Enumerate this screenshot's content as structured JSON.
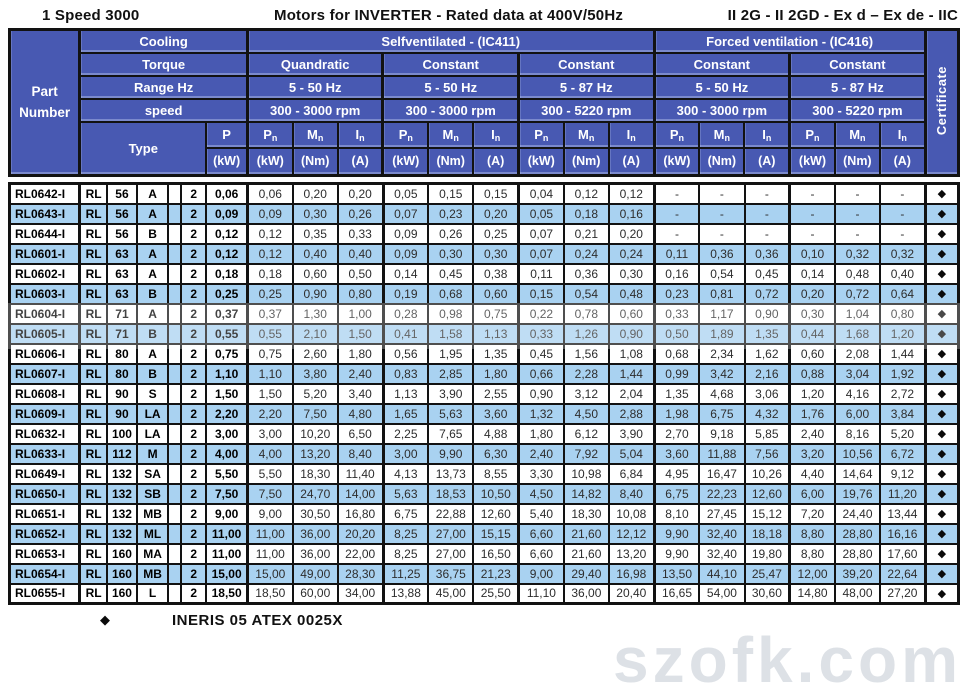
{
  "title": {
    "left": "1 Speed 3000",
    "center": "Motors for INVERTER - Rated data at 400V/50Hz",
    "right": "II 2G - II 2GD - Ex d – Ex de - IIC"
  },
  "colors": {
    "header_blue": "#4859b2",
    "row_alt_blue": "#a9d2f1",
    "border": "#121212"
  },
  "header": {
    "part_number": "Part Number",
    "cooling_label": "Cooling",
    "torque_label": "Torque",
    "range_label": "Range Hz",
    "speed_label": "speed",
    "type_label": "Type",
    "certificate_label": "Certificate",
    "selfventilated": "Selfventilated - (IC411)",
    "forced": "Forced ventilation - (IC416)",
    "p_col": {
      "sym": "P",
      "unit": "(kW)"
    },
    "groups": [
      {
        "torque": "Quandratic",
        "range": "5 - 50 Hz",
        "speed": "300 - 3000 rpm"
      },
      {
        "torque": "Constant",
        "range": "5 - 50 Hz",
        "speed": "300 - 3000 rpm"
      },
      {
        "torque": "Constant",
        "range": "5 - 87 Hz",
        "speed": "300 - 5220 rpm"
      },
      {
        "torque": "Constant",
        "range": "5 - 50 Hz",
        "speed": "300 - 3000 rpm"
      },
      {
        "torque": "Constant",
        "range": "5 - 87 Hz",
        "speed": "300 - 5220 rpm"
      }
    ],
    "sub_cols": [
      {
        "sym": "P",
        "sub": "n",
        "unit": "(kW)"
      },
      {
        "sym": "M",
        "sub": "n",
        "unit": "(Nm)"
      },
      {
        "sym": "I",
        "sub": "n",
        "unit": "(A)"
      }
    ]
  },
  "rows": [
    {
      "part": "RL0642-I",
      "type": [
        "RL",
        "56",
        "A",
        "2"
      ],
      "p": "0,06",
      "values": [
        "0,06",
        "0,20",
        "0,20",
        "0,05",
        "0,15",
        "0,15",
        "0,04",
        "0,12",
        "0,12",
        "-",
        "-",
        "-",
        "-",
        "-",
        "-"
      ],
      "cert": "◆"
    },
    {
      "part": "RL0643-I",
      "type": [
        "RL",
        "56",
        "A",
        "2"
      ],
      "p": "0,09",
      "values": [
        "0,09",
        "0,30",
        "0,26",
        "0,07",
        "0,23",
        "0,20",
        "0,05",
        "0,18",
        "0,16",
        "-",
        "-",
        "-",
        "-",
        "-",
        "-"
      ],
      "cert": "◆"
    },
    {
      "part": "RL0644-I",
      "type": [
        "RL",
        "56",
        "B",
        "2"
      ],
      "p": "0,12",
      "values": [
        "0,12",
        "0,35",
        "0,33",
        "0,09",
        "0,26",
        "0,25",
        "0,07",
        "0,21",
        "0,20",
        "-",
        "-",
        "-",
        "-",
        "-",
        "-"
      ],
      "cert": "◆"
    },
    {
      "part": "RL0601-I",
      "type": [
        "RL",
        "63",
        "A",
        "2"
      ],
      "p": "0,12",
      "values": [
        "0,12",
        "0,40",
        "0,40",
        "0,09",
        "0,30",
        "0,30",
        "0,07",
        "0,24",
        "0,24",
        "0,11",
        "0,36",
        "0,36",
        "0,10",
        "0,32",
        "0,32"
      ],
      "cert": "◆"
    },
    {
      "part": "RL0602-I",
      "type": [
        "RL",
        "63",
        "A",
        "2"
      ],
      "p": "0,18",
      "values": [
        "0,18",
        "0,60",
        "0,50",
        "0,14",
        "0,45",
        "0,38",
        "0,11",
        "0,36",
        "0,30",
        "0,16",
        "0,54",
        "0,45",
        "0,14",
        "0,48",
        "0,40"
      ],
      "cert": "◆"
    },
    {
      "part": "RL0603-I",
      "type": [
        "RL",
        "63",
        "B",
        "2"
      ],
      "p": "0,25",
      "values": [
        "0,25",
        "0,90",
        "0,80",
        "0,19",
        "0,68",
        "0,60",
        "0,15",
        "0,54",
        "0,48",
        "0,23",
        "0,81",
        "0,72",
        "0,20",
        "0,72",
        "0,64"
      ],
      "cert": "◆"
    },
    {
      "part": "RL0604-I",
      "type": [
        "RL",
        "71",
        "A",
        "2"
      ],
      "p": "0,37",
      "values": [
        "0,37",
        "1,30",
        "1,00",
        "0,28",
        "0,98",
        "0,75",
        "0,22",
        "0,78",
        "0,60",
        "0,33",
        "1,17",
        "0,90",
        "0,30",
        "1,04",
        "0,80"
      ],
      "cert": "◆"
    },
    {
      "part": "RL0605-I",
      "type": [
        "RL",
        "71",
        "B",
        "2"
      ],
      "p": "0,55",
      "values": [
        "0,55",
        "2,10",
        "1,50",
        "0,41",
        "1,58",
        "1,13",
        "0,33",
        "1,26",
        "0,90",
        "0,50",
        "1,89",
        "1,35",
        "0,44",
        "1,68",
        "1,20"
      ],
      "cert": "◆"
    },
    {
      "part": "RL0606-I",
      "type": [
        "RL",
        "80",
        "A",
        "2"
      ],
      "p": "0,75",
      "values": [
        "0,75",
        "2,60",
        "1,80",
        "0,56",
        "1,95",
        "1,35",
        "0,45",
        "1,56",
        "1,08",
        "0,68",
        "2,34",
        "1,62",
        "0,60",
        "2,08",
        "1,44"
      ],
      "cert": "◆"
    },
    {
      "part": "RL0607-I",
      "type": [
        "RL",
        "80",
        "B",
        "2"
      ],
      "p": "1,10",
      "values": [
        "1,10",
        "3,80",
        "2,40",
        "0,83",
        "2,85",
        "1,80",
        "0,66",
        "2,28",
        "1,44",
        "0,99",
        "3,42",
        "2,16",
        "0,88",
        "3,04",
        "1,92"
      ],
      "cert": "◆"
    },
    {
      "part": "RL0608-I",
      "type": [
        "RL",
        "90",
        "S",
        "2"
      ],
      "p": "1,50",
      "values": [
        "1,50",
        "5,20",
        "3,40",
        "1,13",
        "3,90",
        "2,55",
        "0,90",
        "3,12",
        "2,04",
        "1,35",
        "4,68",
        "3,06",
        "1,20",
        "4,16",
        "2,72"
      ],
      "cert": "◆"
    },
    {
      "part": "RL0609-I",
      "type": [
        "RL",
        "90",
        "LA",
        "2"
      ],
      "p": "2,20",
      "values": [
        "2,20",
        "7,50",
        "4,80",
        "1,65",
        "5,63",
        "3,60",
        "1,32",
        "4,50",
        "2,88",
        "1,98",
        "6,75",
        "4,32",
        "1,76",
        "6,00",
        "3,84"
      ],
      "cert": "◆"
    },
    {
      "part": "RL0632-I",
      "type": [
        "RL",
        "100",
        "LA",
        "2"
      ],
      "p": "3,00",
      "values": [
        "3,00",
        "10,20",
        "6,50",
        "2,25",
        "7,65",
        "4,88",
        "1,80",
        "6,12",
        "3,90",
        "2,70",
        "9,18",
        "5,85",
        "2,40",
        "8,16",
        "5,20"
      ],
      "cert": "◆"
    },
    {
      "part": "RL0633-I",
      "type": [
        "RL",
        "112",
        "M",
        "2"
      ],
      "p": "4,00",
      "values": [
        "4,00",
        "13,20",
        "8,40",
        "3,00",
        "9,90",
        "6,30",
        "2,40",
        "7,92",
        "5,04",
        "3,60",
        "11,88",
        "7,56",
        "3,20",
        "10,56",
        "6,72"
      ],
      "cert": "◆"
    },
    {
      "part": "RL0649-I",
      "type": [
        "RL",
        "132",
        "SA",
        "2"
      ],
      "p": "5,50",
      "values": [
        "5,50",
        "18,30",
        "11,40",
        "4,13",
        "13,73",
        "8,55",
        "3,30",
        "10,98",
        "6,84",
        "4,95",
        "16,47",
        "10,26",
        "4,40",
        "14,64",
        "9,12"
      ],
      "cert": "◆"
    },
    {
      "part": "RL0650-I",
      "type": [
        "RL",
        "132",
        "SB",
        "2"
      ],
      "p": "7,50",
      "values": [
        "7,50",
        "24,70",
        "14,00",
        "5,63",
        "18,53",
        "10,50",
        "4,50",
        "14,82",
        "8,40",
        "6,75",
        "22,23",
        "12,60",
        "6,00",
        "19,76",
        "11,20"
      ],
      "cert": "◆"
    },
    {
      "part": "RL0651-I",
      "type": [
        "RL",
        "132",
        "MB",
        "2"
      ],
      "p": "9,00",
      "values": [
        "9,00",
        "30,50",
        "16,80",
        "6,75",
        "22,88",
        "12,60",
        "5,40",
        "18,30",
        "10,08",
        "8,10",
        "27,45",
        "15,12",
        "7,20",
        "24,40",
        "13,44"
      ],
      "cert": "◆"
    },
    {
      "part": "RL0652-I",
      "type": [
        "RL",
        "132",
        "ML",
        "2"
      ],
      "p": "11,00",
      "values": [
        "11,00",
        "36,00",
        "20,20",
        "8,25",
        "27,00",
        "15,15",
        "6,60",
        "21,60",
        "12,12",
        "9,90",
        "32,40",
        "18,18",
        "8,80",
        "28,80",
        "16,16"
      ],
      "cert": "◆"
    },
    {
      "part": "RL0653-I",
      "type": [
        "RL",
        "160",
        "MA",
        "2"
      ],
      "p": "11,00",
      "values": [
        "11,00",
        "36,00",
        "22,00",
        "8,25",
        "27,00",
        "16,50",
        "6,60",
        "21,60",
        "13,20",
        "9,90",
        "32,40",
        "19,80",
        "8,80",
        "28,80",
        "17,60"
      ],
      "cert": "◆"
    },
    {
      "part": "RL0654-I",
      "type": [
        "RL",
        "160",
        "MB",
        "2"
      ],
      "p": "15,00",
      "values": [
        "15,00",
        "49,00",
        "28,30",
        "11,25",
        "36,75",
        "21,23",
        "9,00",
        "29,40",
        "16,98",
        "13,50",
        "44,10",
        "25,47",
        "12,00",
        "39,20",
        "22,64"
      ],
      "cert": "◆"
    },
    {
      "part": "RL0655-I",
      "type": [
        "RL",
        "160",
        "L",
        "2"
      ],
      "p": "18,50",
      "values": [
        "18,50",
        "60,00",
        "34,00",
        "13,88",
        "45,00",
        "25,50",
        "11,10",
        "36,00",
        "20,40",
        "16,65",
        "54,00",
        "30,60",
        "14,80",
        "48,00",
        "27,20"
      ],
      "cert": "◆"
    }
  ],
  "footer": {
    "cert_symbol": "◆",
    "cert_text": "INERIS 05 ATEX 0025X"
  },
  "watermark": "szofk.com"
}
